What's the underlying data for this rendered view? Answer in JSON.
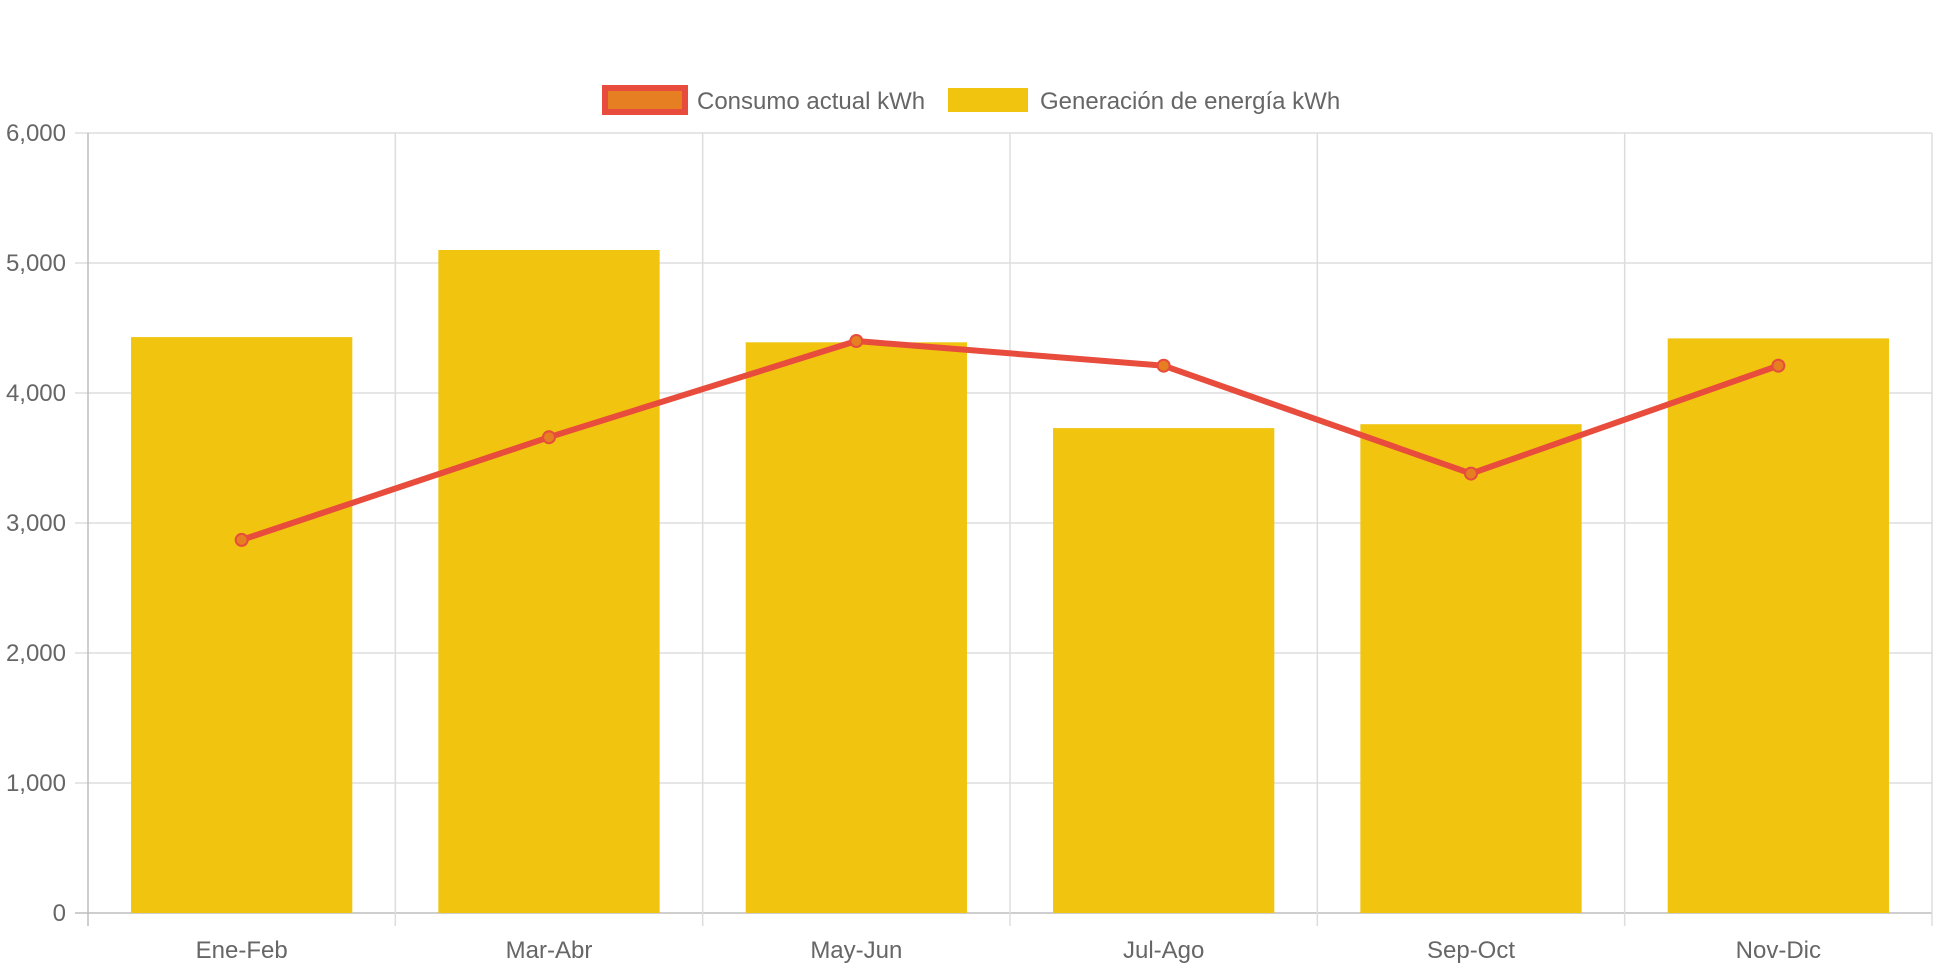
{
  "chart_data": {
    "type": "bar",
    "categories": [
      "Ene-Feb",
      "Mar-Abr",
      "May-Jun",
      "Jul-Ago",
      "Sep-Oct",
      "Nov-Dic"
    ],
    "series": [
      {
        "name": "Consumo actual kWh",
        "type": "line",
        "color": "#e74c3c",
        "point_color": "#e67e22",
        "values": [
          2870,
          3660,
          4400,
          4210,
          3380,
          4210
        ]
      },
      {
        "name": "Generación de energía kWh",
        "type": "bar",
        "color": "#f1c40f",
        "values": [
          4430,
          5100,
          4390,
          3730,
          3760,
          4420
        ]
      }
    ],
    "ylim": [
      0,
      6000
    ],
    "yticks": [
      0,
      1000,
      2000,
      3000,
      4000,
      5000,
      6000
    ],
    "ytick_labels": [
      "0",
      "1,000",
      "2,000",
      "3,000",
      "4,000",
      "5,000",
      "6,000"
    ],
    "grid": true,
    "legend_position": "top-center",
    "title": "",
    "xlabel": "",
    "ylabel": ""
  }
}
